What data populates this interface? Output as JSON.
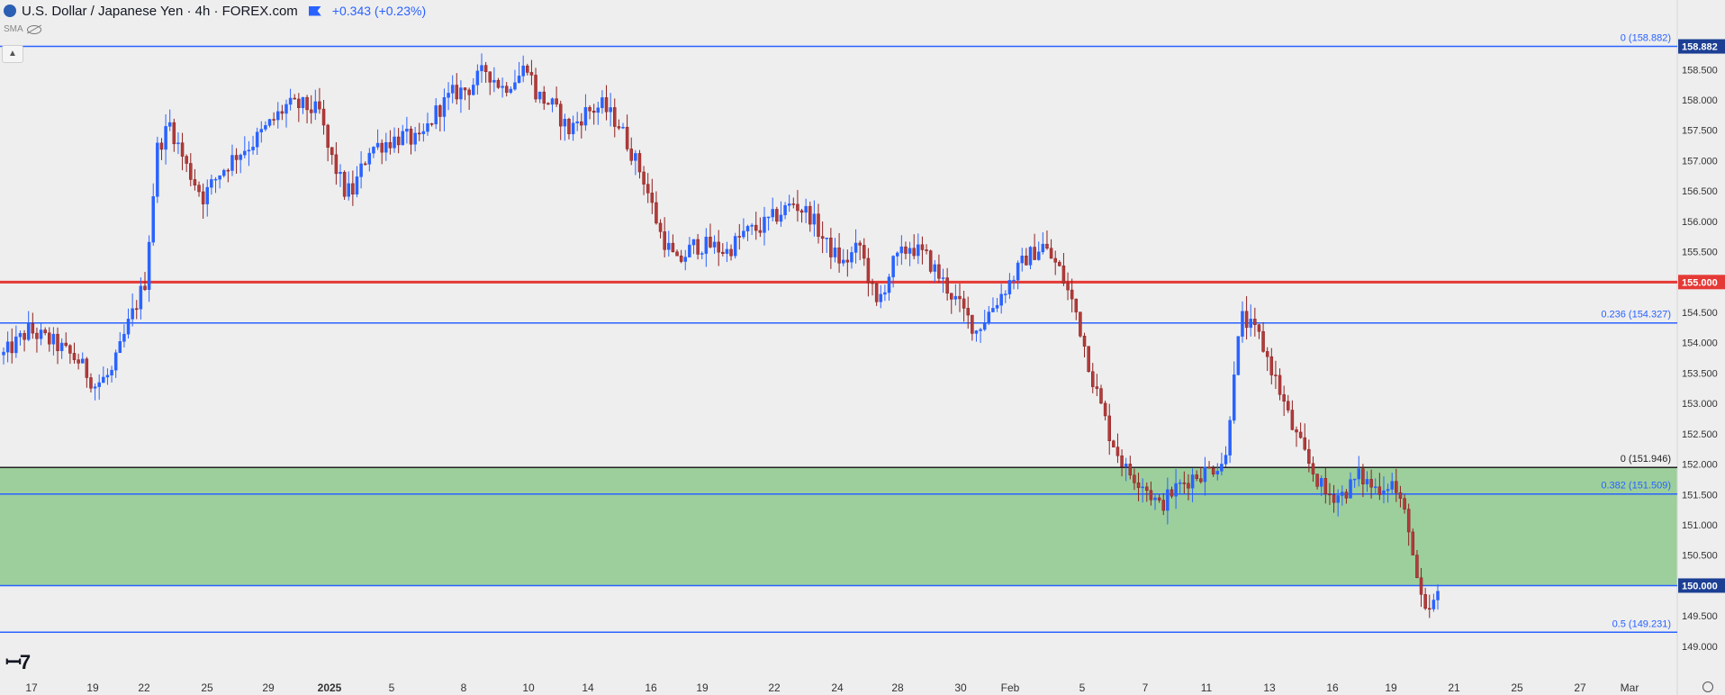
{
  "header": {
    "title": "U.S. Dollar / Japanese Yen · 4h · FOREX.com",
    "change": "+0.343 (+0.23%)",
    "indicator": "SMA"
  },
  "colors": {
    "up": "#2962ff",
    "down": "#8e1f1f",
    "down_body": "#b23b3b",
    "zone": "#9ccf9c",
    "red_line": "#e53935",
    "blue_line": "#2962ff",
    "axis_tag": "#1c3f94"
  },
  "chart_data": {
    "type": "candlestick",
    "y_axis": {
      "range": [
        148.85,
        159.35
      ],
      "ticks": [
        149.0,
        149.5,
        150.0,
        150.5,
        151.0,
        151.5,
        152.0,
        152.5,
        153.0,
        153.5,
        154.0,
        154.5,
        155.0,
        155.5,
        156.0,
        156.5,
        157.0,
        157.5,
        158.0,
        158.5
      ]
    },
    "x_axis": {
      "tick_labels": [
        "17",
        "19",
        "22",
        "25",
        "29",
        "2025",
        "5",
        "8",
        "10",
        "14",
        "16",
        "19",
        "22",
        "24",
        "28",
        "30",
        "Feb",
        "5",
        "7",
        "11",
        "13",
        "16",
        "19",
        "21",
        "25",
        "27",
        "Mar"
      ]
    },
    "axis_tags": [
      {
        "value": 158.882,
        "label": "158.882"
      },
      {
        "value": 155.0,
        "label": "155.000"
      },
      {
        "value": 150.0,
        "label": "150.000"
      }
    ],
    "zone": {
      "from": 150.0,
      "to": 151.946
    },
    "lines": [
      {
        "value": 158.882,
        "label": "0 (158.882)",
        "color": "blue"
      },
      {
        "value": 155.0,
        "label": "",
        "color": "red"
      },
      {
        "value": 154.327,
        "label": "0.236 (154.327)",
        "color": "blue"
      },
      {
        "value": 151.946,
        "label": "0 (151.946)",
        "color": "black"
      },
      {
        "value": 151.509,
        "label": "0.382 (151.509)",
        "color": "blue"
      },
      {
        "value": 150.0,
        "label": "",
        "color": "blue"
      },
      {
        "value": 149.231,
        "label": "0.5 (149.231)",
        "color": "blue"
      }
    ],
    "close_path": [
      [
        0,
        153.8
      ],
      [
        6,
        154.2
      ],
      [
        12,
        154.0
      ],
      [
        18,
        153.7
      ],
      [
        22,
        153.3
      ],
      [
        26,
        153.5
      ],
      [
        30,
        154.3
      ],
      [
        34,
        155.0
      ],
      [
        37,
        157.2
      ],
      [
        40,
        157.6
      ],
      [
        44,
        156.9
      ],
      [
        48,
        156.4
      ],
      [
        52,
        156.8
      ],
      [
        56,
        157.1
      ],
      [
        60,
        157.3
      ],
      [
        64,
        157.6
      ],
      [
        68,
        157.9
      ],
      [
        72,
        157.9
      ],
      [
        76,
        157.8
      ],
      [
        78,
        157.2
      ],
      [
        82,
        156.5
      ],
      [
        84,
        156.5
      ],
      [
        88,
        157.2
      ],
      [
        92,
        157.3
      ],
      [
        96,
        157.4
      ],
      [
        100,
        157.3
      ],
      [
        104,
        157.8
      ],
      [
        108,
        158.1
      ],
      [
        112,
        158.2
      ],
      [
        116,
        158.5
      ],
      [
        120,
        158.2
      ],
      [
        124,
        158.4
      ],
      [
        126,
        158.6
      ],
      [
        128,
        158.1
      ],
      [
        132,
        157.9
      ],
      [
        136,
        157.5
      ],
      [
        140,
        157.8
      ],
      [
        144,
        157.9
      ],
      [
        148,
        157.6
      ],
      [
        150,
        157.3
      ],
      [
        154,
        156.7
      ],
      [
        158,
        155.8
      ],
      [
        162,
        155.3
      ],
      [
        166,
        155.6
      ],
      [
        170,
        155.6
      ],
      [
        174,
        155.5
      ],
      [
        178,
        155.8
      ],
      [
        182,
        155.9
      ],
      [
        186,
        156.1
      ],
      [
        190,
        156.3
      ],
      [
        194,
        156.1
      ],
      [
        198,
        155.6
      ],
      [
        202,
        155.3
      ],
      [
        206,
        155.6
      ],
      [
        210,
        154.6
      ],
      [
        214,
        155.3
      ],
      [
        218,
        155.6
      ],
      [
        222,
        155.4
      ],
      [
        226,
        155.0
      ],
      [
        230,
        154.6
      ],
      [
        234,
        154.2
      ],
      [
        238,
        154.6
      ],
      [
        242,
        155.0
      ],
      [
        246,
        155.4
      ],
      [
        250,
        155.6
      ],
      [
        254,
        155.2
      ],
      [
        258,
        154.5
      ],
      [
        262,
        153.4
      ],
      [
        266,
        152.5
      ],
      [
        270,
        151.9
      ],
      [
        274,
        151.7
      ],
      [
        278,
        151.3
      ],
      [
        282,
        151.6
      ],
      [
        286,
        151.8
      ],
      [
        290,
        151.9
      ],
      [
        294,
        152.1
      ],
      [
        296,
        153.6
      ],
      [
        298,
        154.4
      ],
      [
        302,
        154.1
      ],
      [
        306,
        153.4
      ],
      [
        310,
        152.6
      ],
      [
        314,
        152.0
      ],
      [
        318,
        151.5
      ],
      [
        322,
        151.5
      ],
      [
        326,
        151.8
      ],
      [
        330,
        151.6
      ],
      [
        334,
        151.7
      ],
      [
        338,
        151.0
      ],
      [
        340,
        150.0
      ],
      [
        342,
        149.5
      ],
      [
        345,
        149.8
      ]
    ]
  }
}
